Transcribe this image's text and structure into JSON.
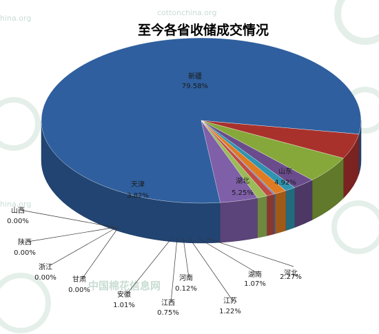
{
  "watermark": {
    "site_text_top": "cottonchina.org",
    "site_text_left_top": "hina.org",
    "site_text_left_mid": "hina.org",
    "brand_cn": "中国棉花信息网"
  },
  "chart_data": {
    "type": "pie",
    "title": "至今各省收储成交情况",
    "slices": [
      {
        "name": "新疆",
        "value": 79.58,
        "label": "79.58%",
        "color": "#2f5f9e"
      },
      {
        "name": "山东",
        "value": 4.92,
        "label": "4.92%",
        "color": "#a9312c"
      },
      {
        "name": "湖北",
        "value": 5.25,
        "label": "5.25%",
        "color": "#86a83a"
      },
      {
        "name": "河北",
        "value": 2.27,
        "label": "2.27%",
        "color": "#6a4c8c"
      },
      {
        "name": "湖南",
        "value": 1.07,
        "label": "1.07%",
        "color": "#2f94b0"
      },
      {
        "name": "江苏",
        "value": 1.22,
        "label": "1.22%",
        "color": "#e07b22"
      },
      {
        "name": "河南",
        "value": 0.12,
        "label": "0.12%",
        "color": "#5d7fbf"
      },
      {
        "name": "江西",
        "value": 0.75,
        "label": "0.75%",
        "color": "#c04b44"
      },
      {
        "name": "安徽",
        "value": 1.01,
        "label": "1.01%",
        "color": "#9bbb59"
      },
      {
        "name": "甘肃",
        "value": 0.0,
        "label": "0.00%",
        "color": "#8064a2"
      },
      {
        "name": "浙江",
        "value": 0.0,
        "label": "0.00%",
        "color": "#4bacc6"
      },
      {
        "name": "陕西",
        "value": 0.0,
        "label": "0.00%",
        "color": "#f79646"
      },
      {
        "name": "山西",
        "value": 0.0,
        "label": "0.00%",
        "color": "#4f81bd"
      },
      {
        "name": "天津",
        "value": 3.82,
        "label": "3.82%",
        "color": "#7f5fa8"
      }
    ]
  }
}
